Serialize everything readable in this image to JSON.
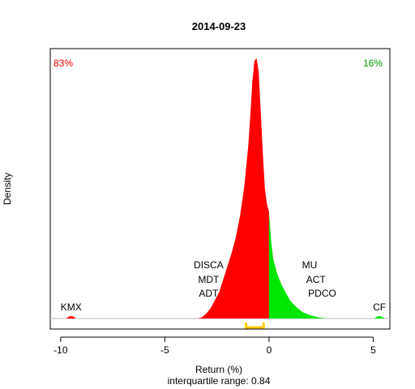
{
  "chart_data": {
    "type": "area",
    "title": "2014-09-23",
    "xlabel": "Return (%)",
    "subtitle": "interquartile range: 0.84",
    "ylabel": "Density",
    "xlim": [
      -10.5,
      5.8
    ],
    "x_ticks": [
      -10,
      -5,
      0,
      5
    ],
    "x_tick_labels": [
      "-10",
      "-5",
      "0",
      "5"
    ],
    "grid": false,
    "pct_negative": "83%",
    "pct_positive": "16%",
    "colors": {
      "negative": "#ff0000",
      "positive": "#00e600",
      "iqr": "#ffcc00",
      "axis": "#000000",
      "baseline": "#bfbfbf"
    },
    "density_curve": {
      "x": [
        -3.4,
        -3.2,
        -3.0,
        -2.8,
        -2.6,
        -2.4,
        -2.2,
        -2.0,
        -1.8,
        -1.6,
        -1.4,
        -1.2,
        -1.0,
        -0.9,
        -0.8,
        -0.7,
        -0.6,
        -0.5,
        -0.4,
        -0.3,
        -0.2,
        -0.1,
        0.0,
        0.1,
        0.2,
        0.4,
        0.6,
        0.8,
        1.0,
        1.3,
        1.6,
        2.0,
        2.4,
        2.8
      ],
      "y": [
        0.0,
        0.006,
        0.02,
        0.04,
        0.07,
        0.1,
        0.15,
        0.2,
        0.25,
        0.31,
        0.39,
        0.5,
        0.66,
        0.78,
        0.91,
        0.99,
        1.0,
        0.95,
        0.8,
        0.64,
        0.5,
        0.44,
        0.41,
        0.3,
        0.23,
        0.17,
        0.13,
        0.1,
        0.07,
        0.045,
        0.025,
        0.012,
        0.004,
        0.0
      ]
    },
    "outlier_bumps": [
      {
        "x": -9.5,
        "side": "negative"
      },
      {
        "x": 5.3,
        "side": "positive"
      }
    ],
    "iqr": [
      -1.1,
      -0.26
    ],
    "annotations": [
      {
        "label": "KMX",
        "x": -9.5,
        "level": 1
      },
      {
        "label": "DISCA",
        "x": -2.9,
        "level": 4
      },
      {
        "label": "MDT",
        "x": -2.9,
        "level": 3
      },
      {
        "label": "ADT",
        "x": -2.9,
        "level": 2
      },
      {
        "label": "MU",
        "x": 1.95,
        "level": 4
      },
      {
        "label": "ACT",
        "x": 2.25,
        "level": 3
      },
      {
        "label": "PDCO",
        "x": 2.55,
        "level": 2
      },
      {
        "label": "CF",
        "x": 5.3,
        "level": 1
      }
    ]
  }
}
